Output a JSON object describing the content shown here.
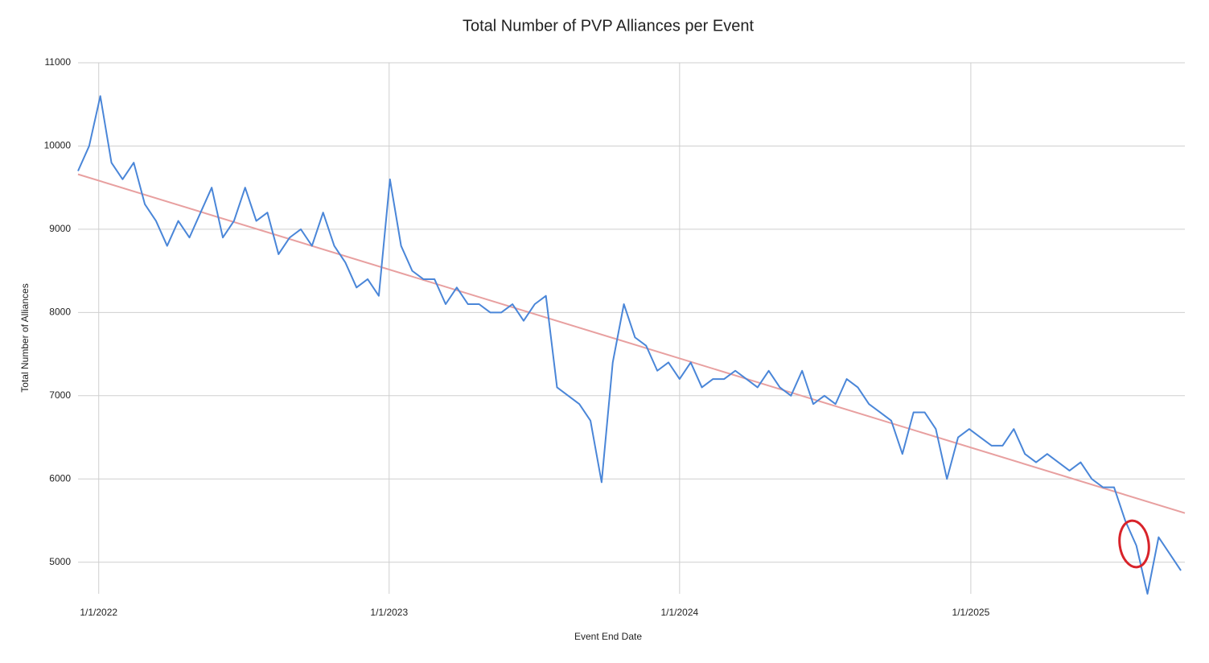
{
  "chart_data": {
    "type": "line",
    "title": "Total Number of PVP Alliances per Event",
    "x_label": "Event End Date",
    "y_label": "Total Number of Alliances",
    "x": [
      "12/6/2021",
      "12/20/2021",
      "1/3/2022",
      "1/17/2022",
      "1/31/2022",
      "2/14/2022",
      "2/28/2022",
      "3/14/2022",
      "3/28/2022",
      "4/11/2022",
      "4/25/2022",
      "5/9/2022",
      "5/23/2022",
      "6/6/2022",
      "6/20/2022",
      "7/4/2022",
      "7/18/2022",
      "8/1/2022",
      "8/15/2022",
      "8/29/2022",
      "9/12/2022",
      "9/26/2022",
      "10/10/2022",
      "10/24/2022",
      "11/7/2022",
      "11/21/2022",
      "12/5/2022",
      "12/19/2022",
      "1/2/2023",
      "1/16/2023",
      "1/30/2023",
      "2/13/2023",
      "2/27/2023",
      "3/13/2023",
      "3/27/2023",
      "4/10/2023",
      "4/24/2023",
      "5/8/2023",
      "5/22/2023",
      "6/5/2023",
      "6/19/2023",
      "7/3/2023",
      "7/17/2023",
      "7/31/2023",
      "8/14/2023",
      "8/28/2023",
      "9/11/2023",
      "9/25/2023",
      "10/9/2023",
      "10/23/2023",
      "11/6/2023",
      "11/20/2023",
      "12/4/2023",
      "12/18/2023",
      "1/1/2024",
      "1/15/2024",
      "1/29/2024",
      "2/12/2024",
      "2/26/2024",
      "3/11/2024",
      "3/25/2024",
      "4/8/2024",
      "4/22/2024",
      "5/6/2024",
      "5/20/2024",
      "6/3/2024",
      "6/17/2024",
      "7/1/2024",
      "7/15/2024",
      "7/29/2024",
      "8/12/2024",
      "8/26/2024",
      "9/9/2024",
      "9/23/2024",
      "10/7/2024",
      "10/21/2024",
      "11/4/2024",
      "11/18/2024",
      "12/2/2024",
      "12/16/2024",
      "12/30/2024",
      "1/13/2025",
      "1/27/2025",
      "2/10/2025",
      "2/24/2025",
      "3/10/2025",
      "3/24/2025",
      "4/7/2025",
      "4/21/2025",
      "5/5/2025",
      "5/19/2025",
      "6/2/2025",
      "6/16/2025",
      "6/30/2025",
      "7/14/2025",
      "7/28/2025",
      "8/11/2025",
      "8/25/2025",
      "9/8/2025",
      "9/22/2025"
    ],
    "series": [
      {
        "color": "#4a86d8",
        "values": [
          9700,
          10000,
          10600,
          9800,
          9600,
          9800,
          9300,
          9100,
          8800,
          9100,
          8900,
          9200,
          9500,
          8900,
          9100,
          9500,
          9100,
          9200,
          8700,
          8900,
          9000,
          8800,
          9200,
          8800,
          8600,
          8300,
          8400,
          8200,
          9600,
          8800,
          8500,
          8400,
          8400,
          8100,
          8300,
          8100,
          8100,
          8000,
          8000,
          8100,
          7900,
          8100,
          8200,
          7100,
          7000,
          6900,
          6700,
          5960,
          7400,
          8100,
          7700,
          7600,
          7300,
          7400,
          7200,
          7400,
          7100,
          7200,
          7200,
          7300,
          7200,
          7100,
          7300,
          7100,
          7000,
          7300,
          6900,
          7000,
          6900,
          7200,
          7100,
          6900,
          6800,
          6700,
          6300,
          6800,
          6800,
          6600,
          6000,
          6500,
          6600,
          6500,
          6400,
          6400,
          6600,
          6300,
          6200,
          6300,
          6200,
          6100,
          6200,
          6000,
          5900,
          5900,
          5500,
          5200,
          4620,
          5300,
          5100,
          4900
        ]
      }
    ],
    "trendline": {
      "color": "#e8a0a0",
      "x": [
        "12/6/2021",
        "9/27/2025"
      ],
      "values": [
        9660,
        5590
      ]
    },
    "xlim": [
      "12/6/2021",
      "9/27/2025"
    ],
    "xticks": [
      "1/1/2022",
      "1/1/2023",
      "1/1/2024",
      "1/1/2025"
    ],
    "ylim": [
      4620,
      11000
    ],
    "yticks": [
      5000,
      6000,
      7000,
      8000,
      9000,
      10000,
      11000
    ],
    "grid": true
  }
}
